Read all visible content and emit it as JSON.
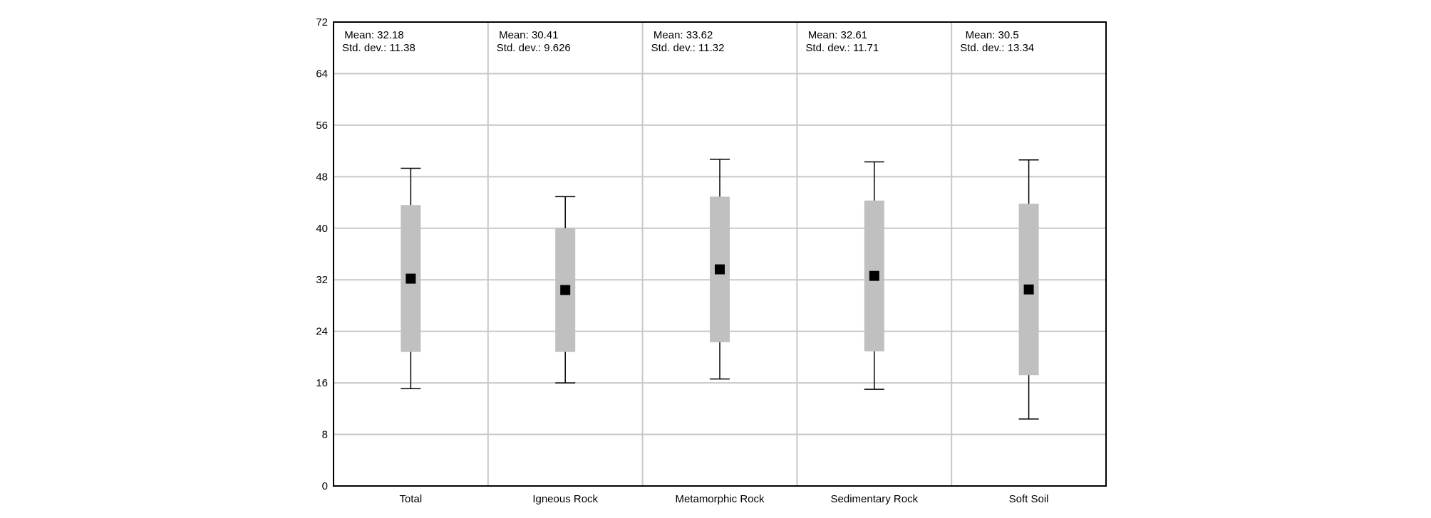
{
  "chart_data": {
    "type": "box",
    "title": "",
    "xlabel": "",
    "ylabel": "",
    "ylim": [
      0,
      72
    ],
    "yticks": [
      "0",
      "8",
      "16",
      "24",
      "32",
      "40",
      "48",
      "56",
      "64",
      "72"
    ],
    "grid": true,
    "categories": [
      "Total",
      "Igneous Rock",
      "Metamorphic Rock",
      "Sedimentary Rock",
      "Soft Soil"
    ],
    "boxes": [
      {
        "category": "Total",
        "whisker_low": 15.1,
        "box_low": 20.8,
        "box_high": 43.6,
        "whisker_high": 49.3,
        "mean": 32.18,
        "mean_label": "Mean: 32.18",
        "std_label": "Std. dev.: 11.38"
      },
      {
        "category": "Igneous Rock",
        "whisker_low": 16.0,
        "box_low": 20.8,
        "box_high": 40.0,
        "whisker_high": 44.9,
        "mean": 30.41,
        "mean_label": "Mean: 30.41",
        "std_label": "Std. dev.: 9.626"
      },
      {
        "category": "Metamorphic Rock",
        "whisker_low": 16.6,
        "box_low": 22.3,
        "box_high": 44.9,
        "whisker_high": 50.7,
        "mean": 33.62,
        "mean_label": "Mean: 33.62",
        "std_label": "Std. dev.: 11.32"
      },
      {
        "category": "Sedimentary Rock",
        "whisker_low": 15.0,
        "box_low": 20.9,
        "box_high": 44.3,
        "whisker_high": 50.3,
        "mean": 32.61,
        "mean_label": "Mean: 32.61",
        "std_label": "Std. dev.: 11.71"
      },
      {
        "category": "Soft Soil",
        "whisker_low": 10.4,
        "box_low": 17.2,
        "box_high": 43.8,
        "whisker_high": 50.6,
        "mean": 30.5,
        "mean_label": "Mean: 30.5",
        "std_label": "Std. dev.: 13.34"
      }
    ],
    "colors": {
      "box": "#c0c0c0",
      "mean_marker": "#000000",
      "whisker": "#000000",
      "grid": "#c8c8c8",
      "frame": "#000000"
    }
  }
}
